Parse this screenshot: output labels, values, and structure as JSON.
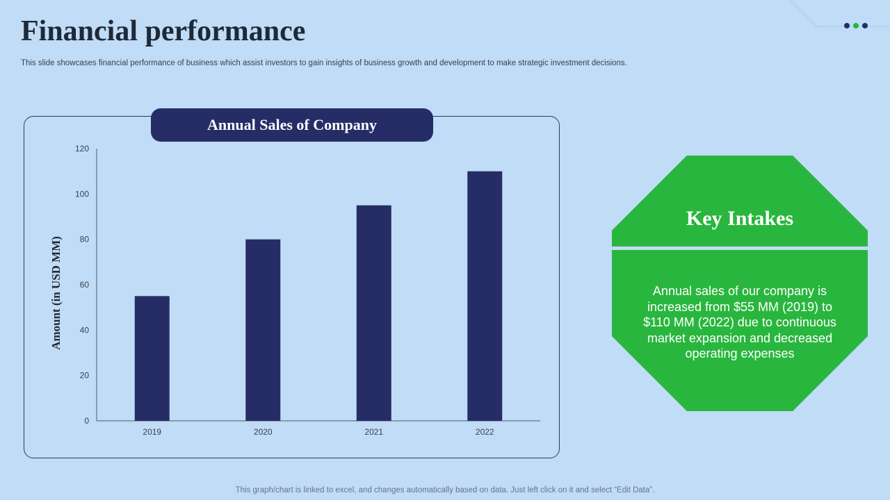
{
  "header": {
    "title": "Financial performance",
    "subtitle": "This slide showcases financial performance of business which assist investors to gain insights of business growth and development to make strategic investment decisions."
  },
  "colors": {
    "background": "#c0dcf7",
    "bar": "#262d66",
    "accent_green": "#29b63e",
    "dot_navy": "#262d66",
    "dot_green": "#29b63e"
  },
  "chart_data": {
    "type": "bar",
    "title": "Annual Sales of Company",
    "categories": [
      "2019",
      "2020",
      "2021",
      "2022"
    ],
    "values": [
      55,
      80,
      95,
      110
    ],
    "xlabel": "",
    "ylabel": "Amount (in USD MM)",
    "ylim": [
      0,
      120
    ],
    "yticks": [
      0,
      20,
      40,
      60,
      80,
      100,
      120
    ],
    "grid": false,
    "legend": "none"
  },
  "key_intakes": {
    "title": "Key Intakes",
    "text": "Annual sales of our company is increased from $55 MM (2019) to $110 MM (2022) due to continuous market expansion and decreased operating expenses"
  },
  "footer": {
    "note": "This graph/chart is linked to excel, and changes automatically based on data. Just left click on it and select “Edit Data”."
  }
}
